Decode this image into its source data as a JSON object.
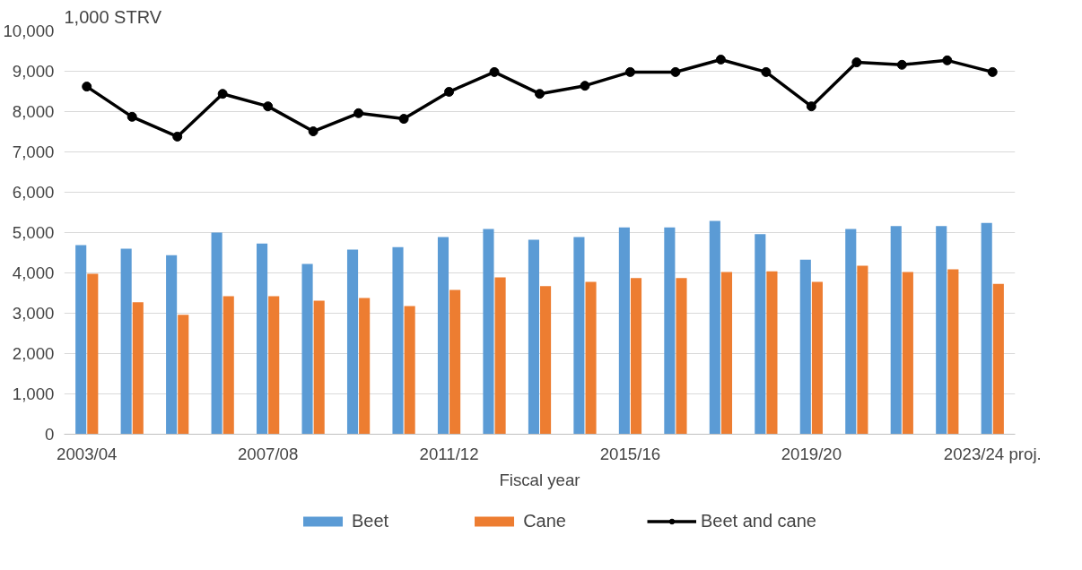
{
  "chart_data": {
    "type": "bar",
    "ylabel": "1,000 STRV",
    "xlabel": "Fiscal year",
    "categories": [
      "2003/04",
      null,
      null,
      null,
      "2007/08",
      null,
      null,
      null,
      "2011/12",
      null,
      null,
      null,
      "2015/16",
      null,
      null,
      null,
      "2019/20",
      null,
      null,
      null,
      "2023/24 proj."
    ],
    "series": [
      {
        "name": "Beet",
        "color": "#5b9bd5",
        "values": [
          4690,
          4600,
          4440,
          5000,
          4730,
          4220,
          4580,
          4640,
          4890,
          5090,
          4820,
          4890,
          5130,
          5130,
          5290,
          4960,
          4330,
          5090,
          5160,
          5160,
          5240
        ]
      },
      {
        "name": "Cane",
        "color": "#ed7d31",
        "values": [
          3980,
          3270,
          2960,
          3420,
          3420,
          3310,
          3380,
          3180,
          3580,
          3890,
          3670,
          3780,
          3870,
          3870,
          4020,
          4040,
          3780,
          4180,
          4020,
          4090,
          3730
        ]
      },
      {
        "name": "Beet and cane",
        "type": "line",
        "color": "#000000",
        "marker": "circle",
        "values": [
          8620,
          7870,
          7380,
          8440,
          8130,
          7510,
          7960,
          7820,
          8490,
          8980,
          8440,
          8640,
          8980,
          8980,
          9290,
          8980,
          8130,
          9220,
          9160,
          9270,
          8980
        ]
      }
    ],
    "ylim": [
      0,
      10000
    ],
    "yticks": [
      0,
      {
        "value": 1000,
        "label": "1,000"
      },
      {
        "value": 2000,
        "label": "2,000"
      },
      {
        "value": 3000,
        "label": "3,000"
      },
      {
        "value": 4000,
        "label": "4,000"
      },
      {
        "value": 5000,
        "label": "5,000"
      },
      {
        "value": 6000,
        "label": "6,000"
      },
      {
        "value": 7000,
        "label": "7,000"
      },
      {
        "value": 8000,
        "label": "8,000"
      },
      {
        "value": 9000,
        "label": "9,000"
      },
      {
        "value": 10000,
        "label": "10,000"
      }
    ],
    "grid": "y",
    "legend": "bottom"
  }
}
